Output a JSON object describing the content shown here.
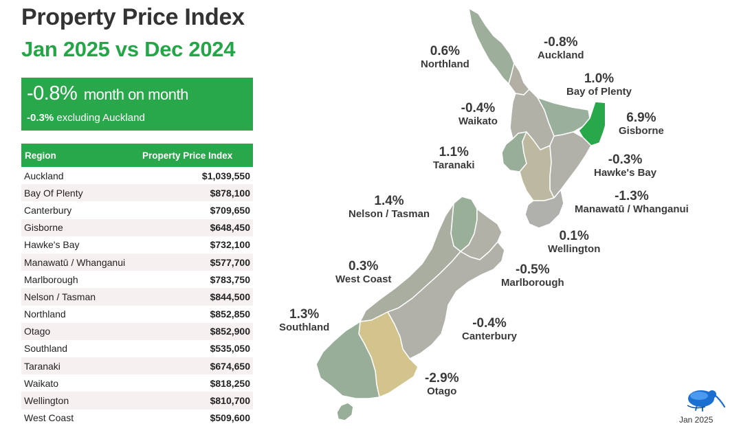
{
  "header": {
    "title": "Property Price Index",
    "subtitle": "Jan 2025 vs Dec 2024"
  },
  "summary": {
    "headline_value": "-0.8%",
    "headline_label": "month on month",
    "secondary_value": "-0.3%",
    "secondary_label": "excluding Auckland",
    "color": "#28a84a"
  },
  "table": {
    "headers": [
      "Region",
      "Property Price Index"
    ],
    "rows": [
      {
        "region": "Auckland",
        "value": "$1,039,550"
      },
      {
        "region": "Bay Of Plenty",
        "value": "$878,100"
      },
      {
        "region": "Canterbury",
        "value": "$709,650"
      },
      {
        "region": "Gisborne",
        "value": "$648,450"
      },
      {
        "region": "Hawke's Bay",
        "value": "$732,100"
      },
      {
        "region": "Manawatū / Whanganui",
        "value": "$577,700"
      },
      {
        "region": "Marlborough",
        "value": "$783,750"
      },
      {
        "region": "Nelson / Tasman",
        "value": "$844,500"
      },
      {
        "region": "Northland",
        "value": "$852,850"
      },
      {
        "region": "Otago",
        "value": "$852,900"
      },
      {
        "region": "Southland",
        "value": "$535,050"
      },
      {
        "region": "Taranaki",
        "value": "$674,650"
      },
      {
        "region": "Waikato",
        "value": "$818,250"
      },
      {
        "region": "Wellington",
        "value": "$810,700"
      },
      {
        "region": "West Coast",
        "value": "$509,600"
      }
    ]
  },
  "map": {
    "regions": {
      "northland": {
        "name": "Northland",
        "change": "0.6%",
        "color": "#9daf9b"
      },
      "auckland": {
        "name": "Auckland",
        "change": "-0.8%",
        "color": "#b2b0a5"
      },
      "bay_of_plenty": {
        "name": "Bay of Plenty",
        "change": "1.0%",
        "color": "#9bb09c"
      },
      "gisborne": {
        "name": "Gisborne",
        "change": "6.9%",
        "color": "#28a84a"
      },
      "waikato": {
        "name": "Waikato",
        "change": "-0.4%",
        "color": "#b1b1a8"
      },
      "taranaki": {
        "name": "Taranaki",
        "change": "1.1%",
        "color": "#98ae98"
      },
      "hawkes_bay": {
        "name": "Hawke's Bay",
        "change": "-0.3%",
        "color": "#b1b1aa"
      },
      "manawatu": {
        "name": "Manawatū / Whanganui",
        "change": "-1.3%",
        "color": "#bdb8a0"
      },
      "wellington": {
        "name": "Wellington",
        "change": "0.1%",
        "color": "#b0b0ad"
      },
      "nelson_tasman": {
        "name": "Nelson / Tasman",
        "change": "1.4%",
        "color": "#9aaf97"
      },
      "marlborough": {
        "name": "Marlborough",
        "change": "-0.5%",
        "color": "#b1b1a7"
      },
      "west_coast": {
        "name": "West Coast",
        "change": "0.3%",
        "color": "#a9aea0"
      },
      "canterbury": {
        "name": "Canterbury",
        "change": "-0.4%",
        "color": "#b1b0a9"
      },
      "southland": {
        "name": "Southland",
        "change": "1.3%",
        "color": "#98ae99"
      },
      "otago": {
        "name": "Otago",
        "change": "-2.9%",
        "color": "#d2c48c"
      }
    }
  },
  "footer": {
    "date": "Jan 2025",
    "logo_icon": "kiwi-bird-icon"
  }
}
